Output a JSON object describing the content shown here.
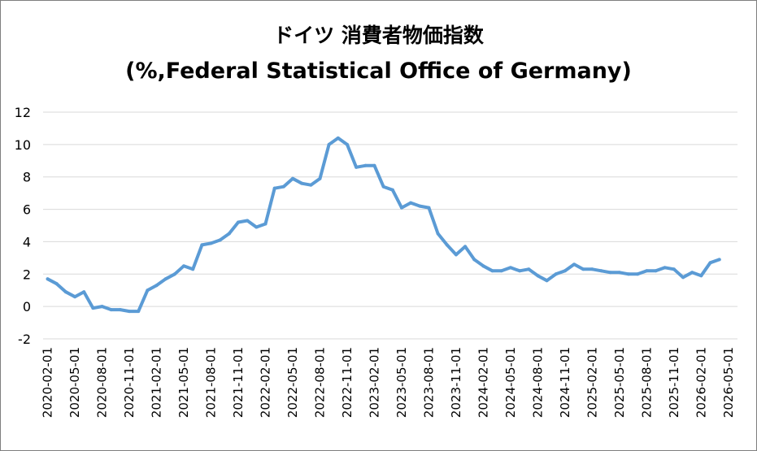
{
  "chart_data": {
    "type": "line",
    "title": "ドイツ 消費者物価指数",
    "subtitle": "(%,Federal Statistical Office of Germany)",
    "xlabel": "",
    "ylabel": "",
    "ylim": [
      -2,
      12
    ],
    "yticks": [
      "12",
      "10",
      "8",
      "6",
      "4",
      "2",
      "0",
      "-2"
    ],
    "xticks": [
      "2020-02-01",
      "2020-05-01",
      "2020-08-01",
      "2020-11-01",
      "2021-02-01",
      "2021-05-01",
      "2021-08-01",
      "2021-11-01",
      "2022-02-01",
      "2022-05-01",
      "2022-08-01",
      "2022-11-01",
      "2023-02-01",
      "2023-05-01",
      "2023-08-01",
      "2023-11-01",
      "2024-02-01",
      "2024-05-01",
      "2024-08-01",
      "2024-11-01",
      "2025-02-01",
      "2025-05-01",
      "2025-08-01",
      "2025-11-01",
      "2026-02-01",
      "2026-05-01"
    ],
    "grid": true,
    "legend": "none",
    "line_color": "#5b9bd5",
    "series": [
      {
        "x": [
          "2020-02-01",
          "2020-03-01",
          "2020-04-01",
          "2020-05-01",
          "2020-06-01",
          "2020-07-01",
          "2020-08-01",
          "2020-09-01",
          "2020-10-01",
          "2020-11-01",
          "2020-12-01",
          "2021-01-01",
          "2021-02-01",
          "2021-03-01",
          "2021-04-01",
          "2021-05-01",
          "2021-06-01",
          "2021-07-01",
          "2021-08-01",
          "2021-09-01",
          "2021-10-01",
          "2021-11-01",
          "2021-12-01",
          "2022-01-01",
          "2022-02-01",
          "2022-03-01",
          "2022-04-01",
          "2022-05-01",
          "2022-06-01",
          "2022-07-01",
          "2022-08-01",
          "2022-09-01",
          "2022-10-01",
          "2022-11-01",
          "2022-12-01",
          "2023-01-01",
          "2023-02-01",
          "2023-03-01",
          "2023-04-01",
          "2023-05-01",
          "2023-06-01",
          "2023-07-01",
          "2023-08-01",
          "2023-09-01",
          "2023-10-01",
          "2023-11-01",
          "2023-12-01",
          "2024-01-01",
          "2024-02-01",
          "2024-03-01",
          "2024-04-01",
          "2024-05-01",
          "2024-06-01",
          "2024-07-01",
          "2024-08-01",
          "2024-09-01",
          "2024-10-01",
          "2024-11-01",
          "2024-12-01",
          "2025-01-01",
          "2025-02-01",
          "2025-03-01",
          "2025-04-01",
          "2025-05-01",
          "2025-06-01",
          "2025-07-01",
          "2025-08-01",
          "2025-09-01",
          "2025-10-01",
          "2025-11-01",
          "2025-12-01",
          "2026-01-01",
          "2026-02-01",
          "2026-03-01",
          "2026-04-01"
        ],
        "values": [
          1.7,
          1.4,
          0.9,
          0.6,
          0.9,
          -0.1,
          0.0,
          -0.2,
          -0.2,
          -0.3,
          -0.3,
          1.0,
          1.3,
          1.7,
          2.0,
          2.5,
          2.3,
          3.8,
          3.9,
          4.1,
          4.5,
          5.2,
          5.3,
          4.9,
          5.1,
          7.3,
          7.4,
          7.9,
          7.6,
          7.5,
          7.9,
          10.0,
          10.4,
          10.0,
          8.6,
          8.7,
          8.7,
          7.4,
          7.2,
          6.1,
          6.4,
          6.2,
          6.1,
          4.5,
          3.8,
          3.2,
          3.7,
          2.9,
          2.5,
          2.2,
          2.2,
          2.4,
          2.2,
          2.3,
          1.9,
          1.6,
          2.0,
          2.2,
          2.6,
          2.3,
          2.3,
          2.2,
          2.1,
          2.1,
          2.0,
          2.0,
          2.2,
          2.2,
          2.4,
          2.3,
          1.8,
          2.1,
          1.9,
          2.7,
          2.9
        ]
      }
    ]
  }
}
